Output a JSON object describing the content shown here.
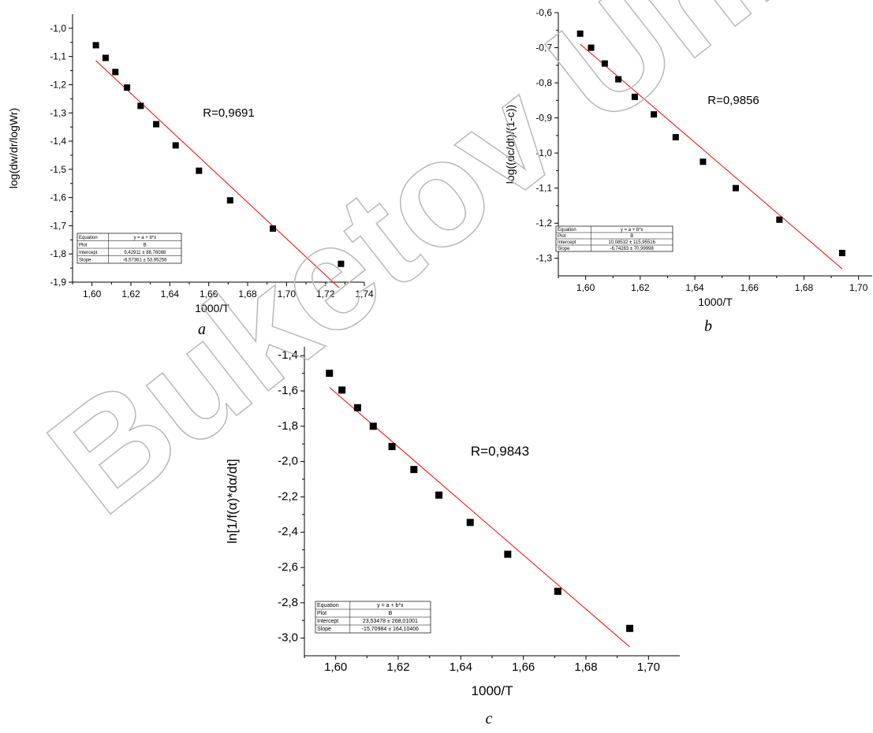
{
  "watermark": "Buketov Uni",
  "colors": {
    "fit_line": "#ff0000",
    "points": "#000000",
    "axis": "#000000"
  },
  "chart_data": [
    {
      "id": "a",
      "type": "scatter",
      "panel_label": "a",
      "xlabel": "1000/T",
      "ylabel": "log(dw/dr/logWr)",
      "xlim": [
        1.59,
        1.74
      ],
      "ylim": [
        -1.9,
        -0.95
      ],
      "xticks": [
        1.6,
        1.62,
        1.64,
        1.66,
        1.68,
        1.7,
        1.72,
        1.74
      ],
      "xtick_labels": [
        "1,60",
        "1,62",
        "1,64",
        "1,66",
        "1,68",
        "1,70",
        "1,72",
        "1,74"
      ],
      "yticks": [
        -1.0,
        -1.1,
        -1.2,
        -1.3,
        -1.4,
        -1.5,
        -1.6,
        -1.7,
        -1.8,
        -1.9
      ],
      "ytick_labels": [
        "-1,0",
        "-1,1",
        "-1,2",
        "-1,3",
        "-1,4",
        "-1,5",
        "-1,6",
        "-1,7",
        "-1,8",
        "-1,9"
      ],
      "points": [
        [
          1.602,
          -1.06
        ],
        [
          1.607,
          -1.105
        ],
        [
          1.612,
          -1.155
        ],
        [
          1.618,
          -1.21
        ],
        [
          1.625,
          -1.275
        ],
        [
          1.633,
          -1.34
        ],
        [
          1.643,
          -1.415
        ],
        [
          1.655,
          -1.505
        ],
        [
          1.671,
          -1.61
        ],
        [
          1.693,
          -1.71
        ],
        [
          1.728,
          -1.835
        ]
      ],
      "fit_line": [
        [
          1.602,
          -1.115
        ],
        [
          1.727,
          -1.92
        ]
      ],
      "annotation": "R=0,9691",
      "grid": false,
      "fit_table": {
        "rows": [
          [
            "Equation",
            "y = a + b*x"
          ],
          [
            "Plot",
            "B"
          ],
          [
            "Intercept",
            "9,42911 ± 88,76088"
          ],
          [
            "Slope",
            "-6,57361 ± 53,95256"
          ]
        ]
      }
    },
    {
      "id": "b",
      "type": "scatter",
      "panel_label": "b",
      "xlabel": "1000/T",
      "ylabel": "log((dc/dt)/(1-c))",
      "xlim": [
        1.59,
        1.705
      ],
      "ylim": [
        -1.35,
        -0.6
      ],
      "xticks": [
        1.6,
        1.62,
        1.64,
        1.66,
        1.68,
        1.7
      ],
      "xtick_labels": [
        "1,60",
        "1,62",
        "1,64",
        "1,66",
        "1,68",
        "1,70"
      ],
      "yticks": [
        -0.6,
        -0.7,
        -0.8,
        -0.9,
        -1.0,
        -1.1,
        -1.2,
        -1.3
      ],
      "ytick_labels": [
        "-0,6",
        "-0,7",
        "-0,8",
        "-0,9",
        "-1,0",
        "-1,1",
        "-1,2",
        "-1,3"
      ],
      "points": [
        [
          1.598,
          -0.66
        ],
        [
          1.602,
          -0.7
        ],
        [
          1.607,
          -0.745
        ],
        [
          1.612,
          -0.79
        ],
        [
          1.618,
          -0.84
        ],
        [
          1.625,
          -0.89
        ],
        [
          1.633,
          -0.955
        ],
        [
          1.643,
          -1.025
        ],
        [
          1.655,
          -1.1
        ],
        [
          1.671,
          -1.19
        ],
        [
          1.694,
          -1.285
        ]
      ],
      "fit_line": [
        [
          1.598,
          -0.69
        ],
        [
          1.694,
          -1.33
        ]
      ],
      "annotation": "R=0,9856",
      "grid": false,
      "fit_table": {
        "rows": [
          [
            "Equation",
            "y = a + b*x"
          ],
          [
            "Plot",
            "B"
          ],
          [
            "Intercept",
            "10,08532 ± 115,95516"
          ],
          [
            "Slope",
            "-6,74283 ± 70,99998"
          ]
        ]
      }
    },
    {
      "id": "c",
      "type": "scatter",
      "panel_label": "c",
      "xlabel": "1000/T",
      "ylabel": "ln[1/f(α)*dα/dt]",
      "xlim": [
        1.59,
        1.71
      ],
      "ylim": [
        -3.1,
        -1.35
      ],
      "xticks": [
        1.6,
        1.62,
        1.64,
        1.66,
        1.68,
        1.7
      ],
      "xtick_labels": [
        "1,60",
        "1,62",
        "1,64",
        "1,66",
        "1,68",
        "1,70"
      ],
      "yticks": [
        -1.4,
        -1.6,
        -1.8,
        -2.0,
        -2.2,
        -2.4,
        -2.6,
        -2.8,
        -3.0
      ],
      "ytick_labels": [
        "-1,4",
        "-1,6",
        "-1,8",
        "-2,0",
        "-2,2",
        "-2,4",
        "-2,6",
        "-2,8",
        "-3,0"
      ],
      "points": [
        [
          1.598,
          -1.5
        ],
        [
          1.602,
          -1.595
        ],
        [
          1.607,
          -1.695
        ],
        [
          1.612,
          -1.8
        ],
        [
          1.618,
          -1.915
        ],
        [
          1.625,
          -2.045
        ],
        [
          1.633,
          -2.19
        ],
        [
          1.643,
          -2.345
        ],
        [
          1.655,
          -2.525
        ],
        [
          1.671,
          -2.735
        ],
        [
          1.694,
          -2.945
        ]
      ],
      "fit_line": [
        [
          1.598,
          -1.58
        ],
        [
          1.694,
          -3.05
        ]
      ],
      "annotation": "R=0,9843",
      "grid": false,
      "fit_table": {
        "rows": [
          [
            "Equation",
            "y = a + b*x"
          ],
          [
            "Plot",
            "B"
          ],
          [
            "Intercept",
            "23,53478 ± 268,01001"
          ],
          [
            "Slope",
            "-15,70984 ± 164,10406"
          ]
        ]
      }
    }
  ]
}
